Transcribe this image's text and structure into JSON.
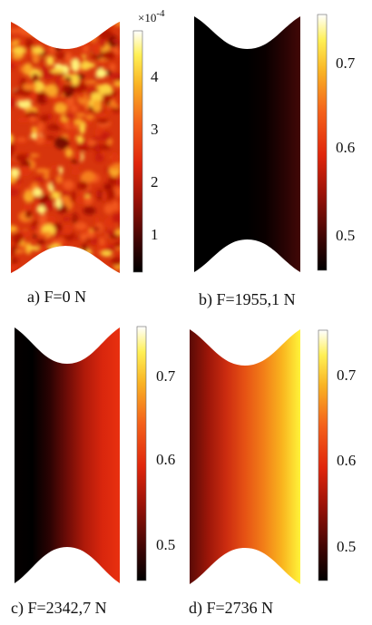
{
  "panels": [
    {
      "id": "a",
      "caption": "a) F=0 N",
      "colorbar": {
        "ticks": [
          "1",
          "2",
          "3",
          "4"
        ],
        "exponent": "×10",
        "exponent_power": "-4",
        "range": [
          0.5,
          4.8
        ]
      },
      "field": "speckle"
    },
    {
      "id": "b",
      "caption": "b) F=1955,1 N",
      "colorbar": {
        "ticks": [
          "0.5",
          "0.6",
          "0.7"
        ],
        "range": [
          0.45,
          0.75
        ]
      },
      "field": "gradient",
      "gradient_stops": [
        "#000000",
        "#000000",
        "#000000",
        "#000000",
        "#0a0000",
        "#250303",
        "#420807"
      ]
    },
    {
      "id": "c",
      "caption": "c) F=2342,7 N",
      "colorbar": {
        "ticks": [
          "0.5",
          "0.6",
          "0.7"
        ],
        "range": [
          0.45,
          0.75
        ]
      },
      "field": "gradient",
      "gradient_stops": [
        "#050000",
        "#000000",
        "#2a0303",
        "#6e0c07",
        "#b01a0a",
        "#d8260d",
        "#e9300f"
      ]
    },
    {
      "id": "d",
      "caption": "d) F=2736 N",
      "colorbar": {
        "ticks": [
          "0.5",
          "0.6",
          "0.7"
        ],
        "range": [
          0.45,
          0.75
        ]
      },
      "field": "gradient",
      "gradient_stops": [
        "#5a0a06",
        "#9c1609",
        "#cc2c10",
        "#e65214",
        "#f27e18",
        "#f9b31e",
        "#fff43a"
      ]
    }
  ],
  "colormap": "hot"
}
